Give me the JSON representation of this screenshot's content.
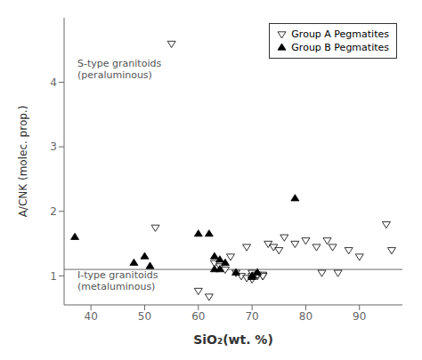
{
  "chart_data": {
    "type": "scatter",
    "xlabel": "SiO₂(wt. %)",
    "ylabel": "A/CNK (molec. prop.)",
    "xlim": [
      35,
      98
    ],
    "ylim": [
      0.55,
      5.0
    ],
    "xticks": [
      40,
      50,
      60,
      70,
      80,
      90
    ],
    "yticks": [
      1,
      2,
      3,
      4
    ],
    "legend": "upper right",
    "series": [
      {
        "name": "Group A Pegmatites",
        "color": "black",
        "marker": "triangle_down_open",
        "x": [
          52,
          55,
          60,
          62,
          63,
          64,
          65,
          66,
          67,
          68,
          69,
          69,
          70,
          70,
          70,
          71,
          71,
          72,
          72,
          72,
          73,
          74,
          75,
          76,
          78,
          80,
          82,
          83,
          84,
          85,
          86,
          88,
          90,
          95,
          96
        ],
        "values": [
          1.75,
          4.6,
          0.77,
          0.68,
          1.2,
          1.15,
          1.1,
          1.3,
          1.05,
          1.0,
          0.97,
          1.45,
          1.0,
          1.05,
          0.95,
          1.0,
          1.02,
          1.0,
          1.02,
          1.0,
          1.5,
          1.45,
          1.4,
          1.6,
          1.5,
          1.55,
          1.45,
          1.05,
          1.55,
          1.45,
          1.05,
          1.4,
          1.3,
          1.8,
          1.4
        ]
      },
      {
        "name": "Group B Pegmatites",
        "color": "black",
        "marker": "triangle_up",
        "x": [
          37,
          48,
          50,
          51,
          60,
          62,
          63,
          63,
          64,
          64,
          65,
          67,
          70,
          70,
          71,
          78
        ],
        "values": [
          1.6,
          1.2,
          1.3,
          1.15,
          1.65,
          1.65,
          1.3,
          1.1,
          1.25,
          1.1,
          1.2,
          1.05,
          1.0,
          0.98,
          1.05,
          2.2
        ]
      }
    ],
    "reference_line": {
      "y": 1.1,
      "color": "#888888"
    },
    "annotations": [
      {
        "text": "S-type granitoids\n(peraluminous)",
        "x": 37.5,
        "y": 4.35,
        "color": "#555555"
      },
      {
        "text": "I-type granitoids\n(metaluminous)",
        "x": 37.5,
        "y": 1.07,
        "color": "#555555"
      }
    ]
  }
}
